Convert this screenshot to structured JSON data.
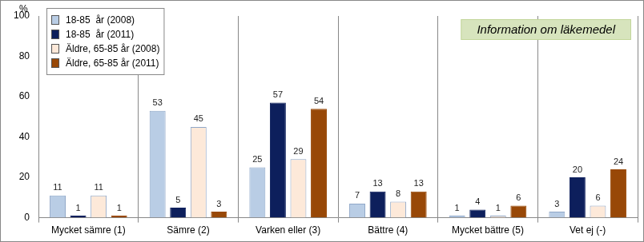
{
  "chart_data": {
    "type": "bar",
    "title": "Information om läkemedel",
    "y_label": "%",
    "categories": [
      "Mycket sämre (1)",
      "Sämre (2)",
      "Varken eller (3)",
      "Bättre (4)",
      "Mycket bättre (5)",
      "Vet ej (-)"
    ],
    "series": [
      {
        "name": "18-85  år (2008)",
        "color": "#b9cde5",
        "values": [
          11,
          53,
          25,
          7,
          1,
          3
        ]
      },
      {
        "name": "18-85  år (2011)",
        "color": "#0d1f5c",
        "values": [
          1,
          5,
          57,
          13,
          4,
          20
        ]
      },
      {
        "name": "Äldre, 65-85 år (2008)",
        "color": "#fde9d9",
        "values": [
          11,
          45,
          29,
          8,
          1,
          6
        ]
      },
      {
        "name": "Äldre, 65-85 år (2011)",
        "color": "#984807",
        "values": [
          1,
          3,
          54,
          13,
          6,
          24
        ]
      }
    ],
    "ylim": [
      0,
      100
    ],
    "yticks": [
      0,
      20,
      40,
      60,
      80,
      100
    ],
    "grid": "x",
    "legend": "top-left",
    "data_labels": true
  }
}
